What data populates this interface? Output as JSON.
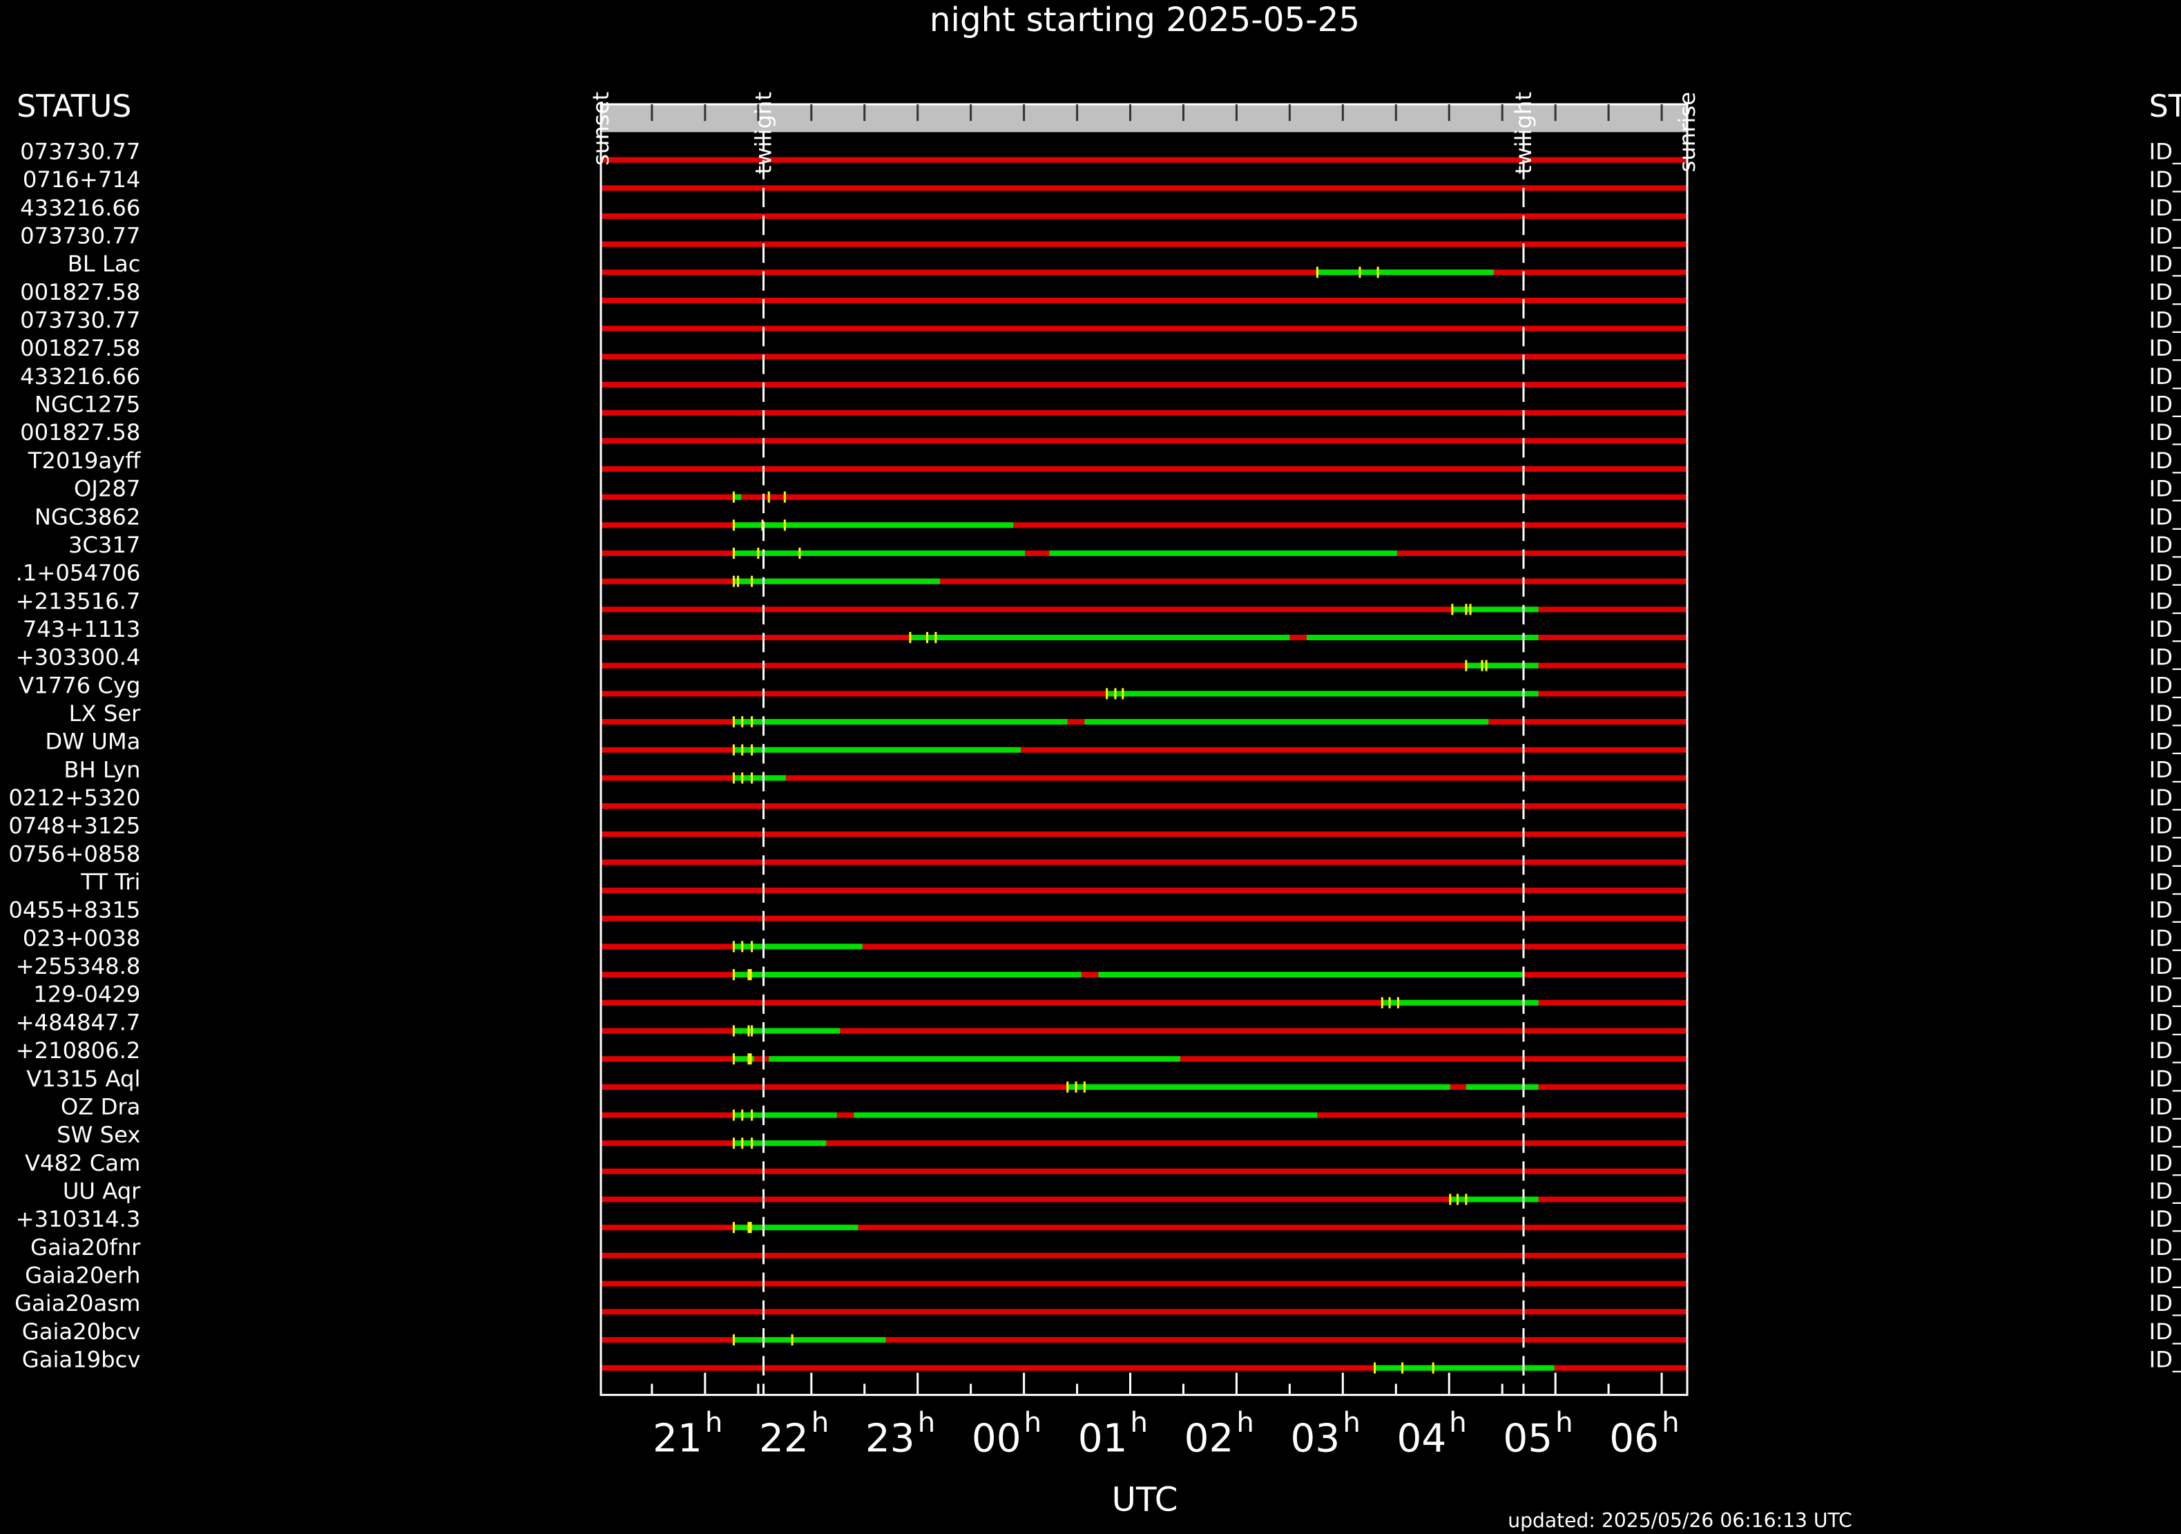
{
  "chart_data": {
    "type": "timeline",
    "title": "night starting 2025-05-25",
    "xlabel": "UTC",
    "x_unit": "h",
    "left_header": "STATUS",
    "right_header": "ST",
    "footer": "updated: 2025/05/26 06:16:13 UTC",
    "xlim": [
      20.02,
      30.24
    ],
    "xticks": [
      21,
      22,
      23,
      {
        "value": 24,
        "label": "00"
      },
      {
        "value": 25,
        "label": "01"
      },
      {
        "value": 26,
        "label": "02"
      },
      {
        "value": 27,
        "label": "03"
      },
      {
        "value": 28,
        "label": "04"
      },
      {
        "value": 29,
        "label": "05"
      },
      {
        "value": 30,
        "label": "06"
      }
    ],
    "xminorticks": [
      20.5,
      21.5,
      22.5,
      23.5,
      24.5,
      25.5,
      26.5,
      27.5,
      28.5,
      29.5
    ],
    "events": [
      {
        "label": "sunset",
        "x": 20.02
      },
      {
        "label": "twilight",
        "x": 21.55
      },
      {
        "label": "twilight",
        "x": 28.7
      },
      {
        "label": "sunrise",
        "x": 30.24
      }
    ],
    "background_color": "#e00000",
    "segment_color": "#00e000",
    "marker_color": "#ffff00",
    "rows": [
      {
        "label": "073730.77",
        "id": "ID_",
        "segments": [],
        "markers": []
      },
      {
        "label": "0716+714",
        "id": "ID_",
        "segments": [],
        "markers": []
      },
      {
        "label": "433216.66",
        "id": "ID_",
        "segments": [],
        "markers": []
      },
      {
        "label": "073730.77",
        "id": "ID_",
        "segments": [],
        "markers": []
      },
      {
        "label": "BL Lac",
        "id": "ID_",
        "segments": [
          [
            26.76,
            28.42
          ]
        ],
        "markers": [
          26.76,
          27.16,
          27.33
        ]
      },
      {
        "label": "001827.58",
        "id": "ID_",
        "segments": [],
        "markers": []
      },
      {
        "label": "073730.77",
        "id": "ID_",
        "segments": [],
        "markers": []
      },
      {
        "label": "001827.58",
        "id": "ID_",
        "segments": [],
        "markers": []
      },
      {
        "label": "433216.66",
        "id": "ID_",
        "segments": [],
        "markers": []
      },
      {
        "label": "NGC1275",
        "id": "ID_",
        "segments": [],
        "markers": []
      },
      {
        "label": "001827.58",
        "id": "ID_",
        "segments": [],
        "markers": []
      },
      {
        "label": "T2019ayff",
        "id": "ID_",
        "segments": [],
        "markers": []
      },
      {
        "label": "OJ287",
        "id": "ID_",
        "segments": [
          [
            21.27,
            21.34
          ]
        ],
        "markers": [
          21.27,
          21.6,
          21.75
        ]
      },
      {
        "label": "NGC3862",
        "id": "ID_",
        "segments": [
          [
            21.27,
            23.9
          ]
        ],
        "markers": [
          21.27,
          21.54,
          21.75
        ]
      },
      {
        "label": "3C317",
        "id": "ID_",
        "segments": [
          [
            21.27,
            24.01
          ],
          [
            24.24,
            27.51
          ]
        ],
        "markers": [
          21.27,
          21.5,
          21.89
        ]
      },
      {
        "label": ".1+054706",
        "id": "ID_",
        "segments": [
          [
            21.27,
            23.21
          ]
        ],
        "markers": [
          21.27,
          21.31,
          21.44
        ]
      },
      {
        "label": "+213516.7",
        "id": "ID_",
        "segments": [
          [
            28.03,
            28.84
          ]
        ],
        "markers": [
          28.03,
          28.16,
          28.2
        ]
      },
      {
        "label": "743+1113",
        "id": "ID_",
        "segments": [
          [
            22.93,
            26.5
          ],
          [
            26.66,
            28.84
          ]
        ],
        "markers": [
          22.93,
          23.09,
          23.17
        ]
      },
      {
        "label": "+303300.4",
        "id": "ID_",
        "segments": [
          [
            28.16,
            28.84
          ]
        ],
        "markers": [
          28.16,
          28.31,
          28.35
        ]
      },
      {
        "label": "V1776 Cyg",
        "id": "ID_",
        "segments": [
          [
            24.78,
            28.84
          ]
        ],
        "markers": [
          24.78,
          24.86,
          24.93
        ]
      },
      {
        "label": "LX Ser",
        "id": "ID_",
        "segments": [
          [
            21.27,
            24.41
          ],
          [
            24.57,
            28.37
          ]
        ],
        "markers": [
          21.27,
          21.35,
          21.44
        ]
      },
      {
        "label": "DW UMa",
        "id": "ID_",
        "segments": [
          [
            21.27,
            23.97
          ]
        ],
        "markers": [
          21.27,
          21.35,
          21.44
        ]
      },
      {
        "label": "BH Lyn",
        "id": "ID_",
        "segments": [
          [
            21.27,
            21.76
          ]
        ],
        "markers": [
          21.27,
          21.35,
          21.44
        ]
      },
      {
        "label": "0212+5320",
        "id": "ID_",
        "segments": [],
        "markers": []
      },
      {
        "label": "0748+3125",
        "id": "ID_",
        "segments": [],
        "markers": []
      },
      {
        "label": "0756+0858",
        "id": "ID_",
        "segments": [],
        "markers": []
      },
      {
        "label": "TT Tri",
        "id": "ID_",
        "segments": [],
        "markers": []
      },
      {
        "label": "0455+8315",
        "id": "ID_",
        "segments": [],
        "markers": []
      },
      {
        "label": "023+0038",
        "id": "ID_",
        "segments": [
          [
            21.27,
            22.48
          ]
        ],
        "markers": [
          21.27,
          21.35,
          21.44
        ]
      },
      {
        "label": "+255348.8",
        "id": "ID_",
        "segments": [
          [
            21.27,
            24.54
          ],
          [
            24.7,
            28.69
          ]
        ],
        "markers": [
          21.27,
          21.41,
          21.43
        ]
      },
      {
        "label": "129-0429",
        "id": "ID_",
        "segments": [
          [
            27.37,
            28.84
          ]
        ],
        "markers": [
          27.37,
          27.44,
          27.52
        ]
      },
      {
        "label": "+484847.7",
        "id": "ID_",
        "segments": [
          [
            21.27,
            22.27
          ]
        ],
        "markers": [
          21.27,
          21.41,
          21.44
        ]
      },
      {
        "label": "+210806.2",
        "id": "ID_",
        "segments": [
          [
            21.27,
            21.46
          ],
          [
            21.6,
            25.47
          ]
        ],
        "markers": [
          21.27,
          21.41,
          21.43
        ]
      },
      {
        "label": "V1315 Aql",
        "id": "ID_",
        "segments": [
          [
            24.41,
            28.01
          ],
          [
            28.16,
            28.84
          ]
        ],
        "markers": [
          24.41,
          24.49,
          24.57
        ]
      },
      {
        "label": "OZ Dra",
        "id": "ID_",
        "segments": [
          [
            21.27,
            22.24
          ],
          [
            22.4,
            26.76
          ]
        ],
        "markers": [
          21.27,
          21.35,
          21.44
        ]
      },
      {
        "label": "SW Sex",
        "id": "ID_",
        "segments": [
          [
            21.27,
            22.14
          ]
        ],
        "markers": [
          21.27,
          21.35,
          21.44
        ]
      },
      {
        "label": "V482 Cam",
        "id": "ID_",
        "segments": [],
        "markers": []
      },
      {
        "label": "UU Aqr",
        "id": "ID_",
        "segments": [
          [
            28.01,
            28.84
          ]
        ],
        "markers": [
          28.01,
          28.08,
          28.16
        ]
      },
      {
        "label": "+310314.3",
        "id": "ID_",
        "segments": [
          [
            21.27,
            22.44
          ]
        ],
        "markers": [
          21.27,
          21.41,
          21.43
        ]
      },
      {
        "label": "Gaia20fnr",
        "id": "ID_",
        "segments": [],
        "markers": []
      },
      {
        "label": "Gaia20erh",
        "id": "ID_",
        "segments": [],
        "markers": []
      },
      {
        "label": "Gaia20asm",
        "id": "ID_",
        "segments": [],
        "markers": []
      },
      {
        "label": "Gaia20bcv",
        "id": "ID_",
        "segments": [
          [
            21.27,
            22.7
          ]
        ],
        "markers": [
          21.27,
          21.55,
          21.82
        ]
      },
      {
        "label": "Gaia19bcv",
        "id": "ID_",
        "segments": [
          [
            27.3,
            28.99
          ]
        ],
        "markers": [
          27.3,
          27.56,
          27.85
        ]
      }
    ]
  }
}
